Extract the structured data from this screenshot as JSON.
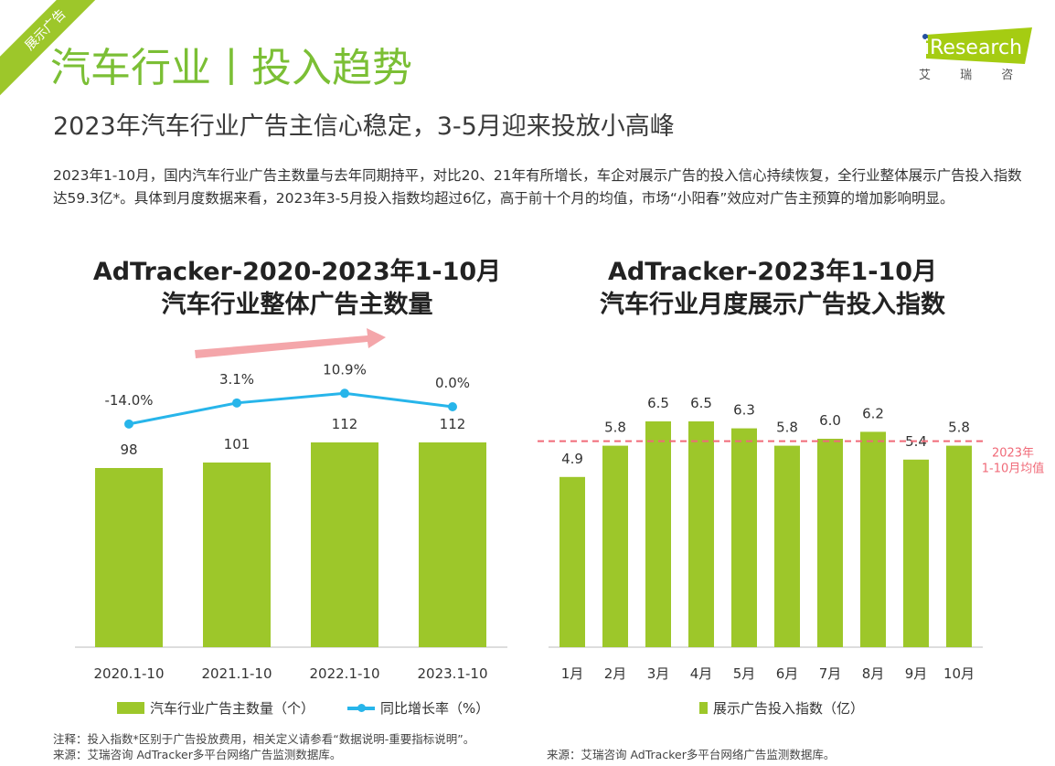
{
  "ribbon": "展示广告",
  "title": "汽车行业丨投入趋势",
  "subtitle": "2023年汽车行业广告主信心稳定，3-5月迎来投放小高峰",
  "body": "2023年1-10月，国内汽车行业广告主数量与去年同期持平，对比20、21年有所增长，车企对展示广告的投入信心持续恢复，全行业整体展示广告投入指数达59.3亿*。具体到月度数据来看，2023年3-5月投入指数均超过6亿，高于前十个月的均值，市场“小阳春”效应对广告主预算的增加影响明显。",
  "logo": {
    "brand": "iResearch",
    "cn": "艾 瑞 咨 询",
    "color": "#a5cc12"
  },
  "colors": {
    "bar": "#9dc72a",
    "line": "#27b5ea",
    "avg": "#f06a78",
    "arrow": "#f4a6aa",
    "title": "#7bbf35"
  },
  "chart_data": [
    {
      "type": "bar+line",
      "title_line1": "AdTracker-2020-2023年1-10月",
      "title_line2": "汽车行业整体广告主数量",
      "categories": [
        "2020.1-10",
        "2021.1-10",
        "2022.1-10",
        "2023.1-10"
      ],
      "series": [
        {
          "name": "汽车行业广告主数量（个）",
          "type": "bar",
          "values": [
            98,
            101,
            112,
            112
          ],
          "labels": [
            "98",
            "101",
            "112",
            "112"
          ]
        },
        {
          "name": "同比增长率（%）",
          "type": "line",
          "values": [
            -14.0,
            3.1,
            10.9,
            0.0
          ],
          "labels": [
            "-14.0%",
            "3.1%",
            "10.9%",
            "0.0%"
          ]
        }
      ],
      "annotation": "upward-trend-arrow"
    },
    {
      "type": "bar",
      "title_line1": "AdTracker-2023年1-10月",
      "title_line2": "汽车行业月度展示广告投入指数",
      "categories": [
        "1月",
        "2月",
        "3月",
        "4月",
        "5月",
        "6月",
        "7月",
        "8月",
        "9月",
        "10月"
      ],
      "series": [
        {
          "name": "展示广告投入指数（亿）",
          "values": [
            4.9,
            5.8,
            6.5,
            6.5,
            6.3,
            5.8,
            6.0,
            6.2,
            5.4,
            5.8
          ],
          "labels": [
            "4.9",
            "5.8",
            "6.5",
            "6.5",
            "6.3",
            "5.8",
            "6.0",
            "6.2",
            "5.4",
            "5.8"
          ]
        }
      ],
      "reference_line": {
        "value": 5.93,
        "label_line1": "2023年",
        "label_line2": "1-10月均值",
        "style": "dashed"
      }
    }
  ],
  "notes": {
    "left1": "注释：投入指数*区别于广告投放费用，相关定义请参看“数据说明-重要指标说明”。",
    "left2": "来源：艾瑞咨询 AdTracker多平台网络广告监测数据库。",
    "right": "来源：艾瑞咨询 AdTracker多平台网络广告监测数据库。"
  }
}
